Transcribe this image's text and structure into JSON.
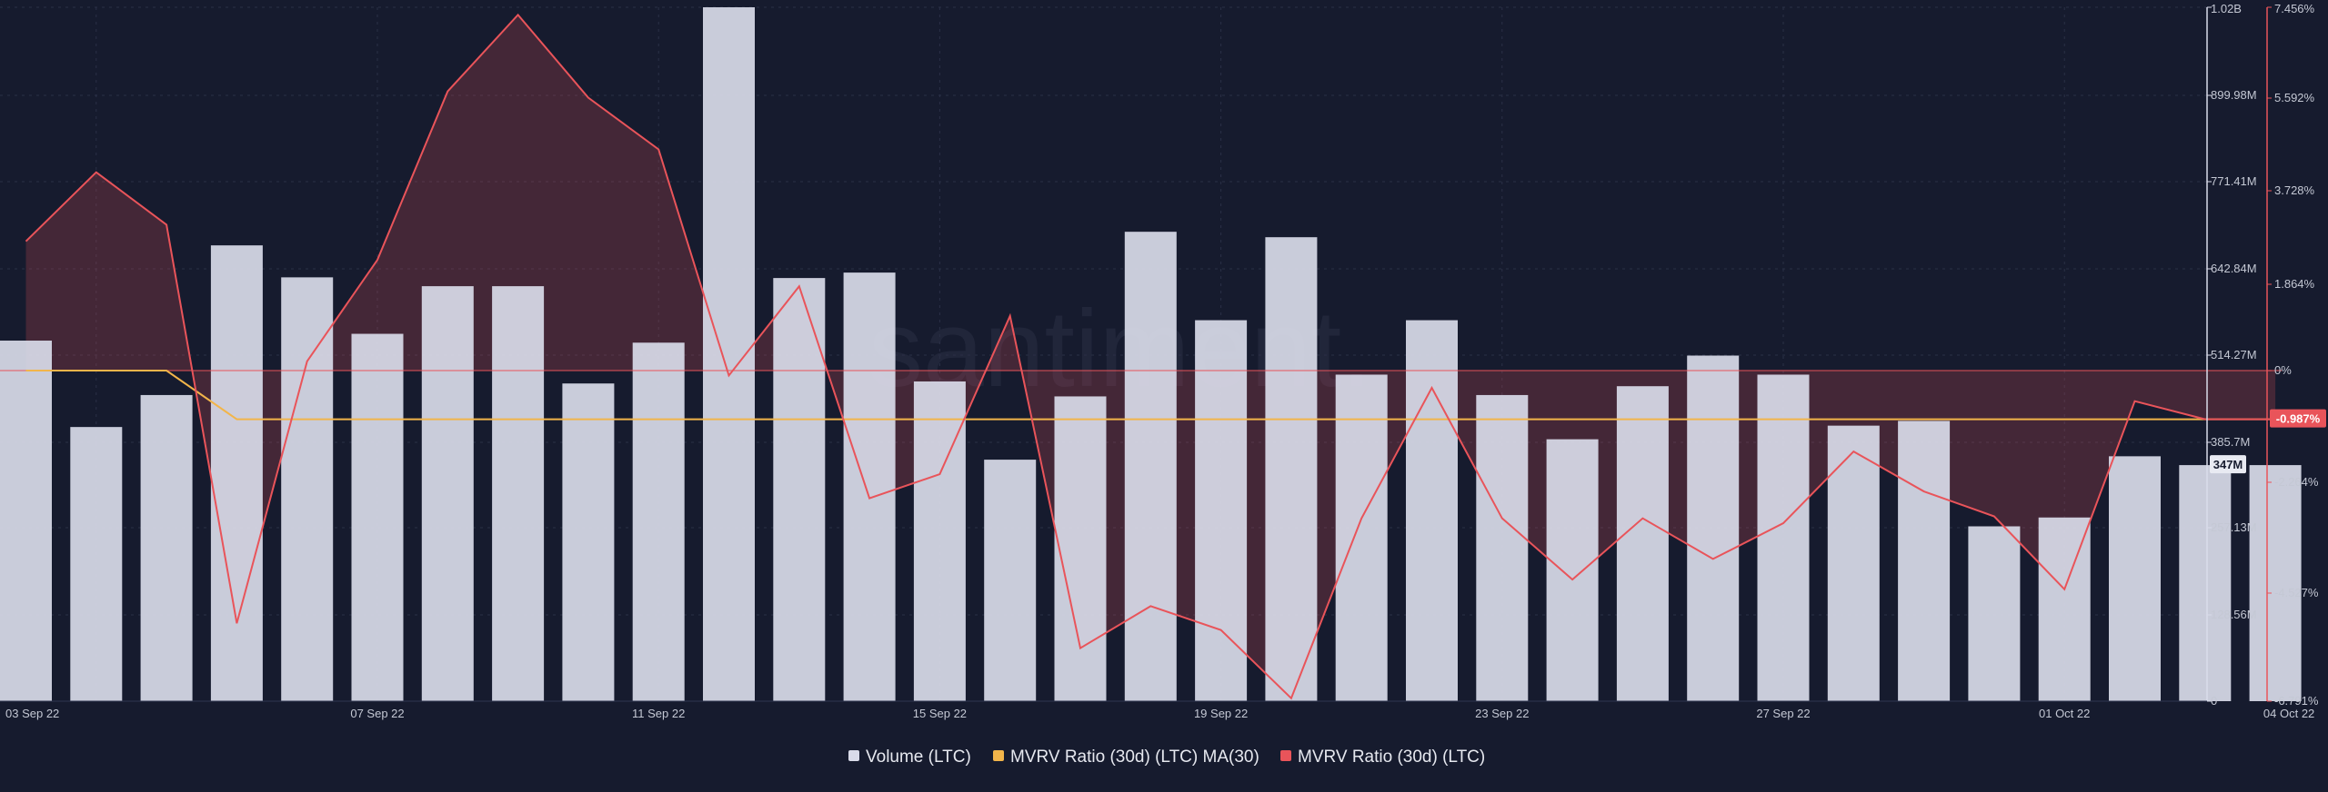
{
  "watermark": "santiment.",
  "chart_data": {
    "type": "bar",
    "x": [
      "02 Sep 22",
      "03 Sep 22",
      "04 Sep 22",
      "05 Sep 22",
      "06 Sep 22",
      "07 Sep 22",
      "08 Sep 22",
      "09 Sep 22",
      "10 Sep 22",
      "11 Sep 22",
      "12 Sep 22",
      "13 Sep 22",
      "14 Sep 22",
      "15 Sep 22",
      "16 Sep 22",
      "17 Sep 22",
      "18 Sep 22",
      "19 Sep 22",
      "20 Sep 22",
      "21 Sep 22",
      "22 Sep 22",
      "23 Sep 22",
      "24 Sep 22",
      "25 Sep 22",
      "26 Sep 22",
      "27 Sep 22",
      "28 Sep 22",
      "29 Sep 22",
      "30 Sep 22",
      "01 Oct 22",
      "02 Oct 22",
      "03 Oct 22",
      "04 Oct 22"
    ],
    "x_tick_labels": [
      "03 Sep 22",
      "07 Sep 22",
      "11 Sep 22",
      "15 Sep 22",
      "19 Sep 22",
      "23 Sep 22",
      "27 Sep 22",
      "01 Oct 22",
      "04 Oct 22"
    ],
    "series": [
      {
        "name": "Volume (LTC)",
        "type": "bar",
        "axis": "left",
        "color": "#d9dbe9",
        "values": [
          530,
          403,
          450,
          670,
          623,
          540,
          610,
          610,
          467,
          527,
          1020,
          622,
          630,
          470,
          355,
          448,
          690,
          560,
          682,
          480,
          560,
          450,
          385,
          463,
          508,
          480,
          405,
          412,
          257,
          270,
          360,
          347,
          347
        ]
      },
      {
        "name": "MVRV Ratio (30d) (LTC) MA(30)",
        "type": "line",
        "axis": "right",
        "color": "#f2b54a",
        "values": [
          0.0,
          0.0,
          0.0,
          -0.987,
          -0.987,
          -0.987,
          -0.987,
          -0.987,
          -0.987,
          -0.987,
          -0.987,
          -0.987,
          -0.987,
          -0.987,
          -0.987,
          -0.987,
          -0.987,
          -0.987,
          -0.987,
          -0.987,
          -0.987,
          -0.987,
          -0.987,
          -0.987,
          -0.987,
          -0.987,
          -0.987,
          -0.987,
          -0.987,
          -0.987,
          -0.987,
          -0.987,
          -0.987
        ]
      },
      {
        "name": "MVRV Ratio (30d) (LTC)",
        "type": "area",
        "axis": "right",
        "color": "#e9545a",
        "values": [
          2.72,
          4.1,
          3.05,
          -5.16,
          0.2,
          2.35,
          5.73,
          7.3,
          5.6,
          4.56,
          -0.1,
          1.82,
          -2.59,
          -2.1,
          1.18,
          -5.68,
          -4.8,
          -5.3,
          -6.73,
          -3.0,
          -0.35,
          -3.0,
          -4.25,
          -3.0,
          -3.83,
          -3.1,
          -1.64,
          -2.45,
          -2.96,
          -4.45,
          -0.62,
          -0.987,
          -0.987
        ]
      }
    ],
    "left_axis": {
      "ticks": [
        "0",
        "128.56M",
        "257.13M",
        "385.7M",
        "514.27M",
        "642.84M",
        "771.41M",
        "899.98M",
        "1.02B"
      ],
      "range": [
        0,
        1020
      ],
      "unit": "M",
      "current_label": "347M"
    },
    "right_axis": {
      "ticks": [
        "-6.791%",
        "-4.527%",
        "-2.264%",
        "0%",
        "1.864%",
        "3.728%",
        "5.592%",
        "7.456%"
      ],
      "current_label": "-0.987%"
    },
    "legend": {
      "placement": "bottom-center",
      "items": [
        {
          "label": "Volume (LTC)",
          "color": "#d9dbe9"
        },
        {
          "label": "MVRV Ratio (30d) (LTC) MA(30)",
          "color": "#f2b54a"
        },
        {
          "label": "MVRV Ratio (30d) (LTC)",
          "color": "#e9545a"
        }
      ]
    },
    "grid": true
  }
}
